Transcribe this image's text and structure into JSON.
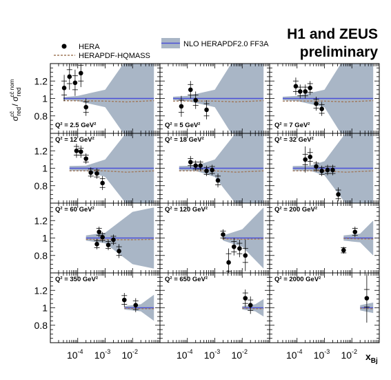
{
  "header": {
    "title_line1": "H1 and ZEUS",
    "title_line2": "preliminary"
  },
  "legend": {
    "data": "HERA",
    "model_a": "HERAPDF-HQMASS",
    "model_b": "NLO HERAPDF2.0 FF3A"
  },
  "colors": {
    "band": "#a9b6c6",
    "nlo_line": "#4a4fd8",
    "hqmass_line": "#a0785a",
    "points": "#000000"
  },
  "chart_data": {
    "type": "scatter",
    "xlabel_base": "x",
    "xlabel_sub": "Bj",
    "ylabel": "σ_red^{cc̄} / σ_red^{cc̄ nom}",
    "x_scale": "log",
    "xlim": [
      1e-05,
      0.1
    ],
    "ylim": [
      0.6,
      1.4
    ],
    "y_ticks": [
      "0.8",
      "1",
      "1.2"
    ],
    "x_ticks": [
      {
        "value": 0.0001,
        "base": "10",
        "exp": "-4"
      },
      {
        "value": 0.001,
        "base": "10",
        "exp": "-3"
      },
      {
        "value": 0.01,
        "base": "10",
        "exp": "-2"
      }
    ],
    "legend_placement": "top",
    "panels": [
      {
        "q2": "Q² = 2.5 GeV²",
        "band": [
          [
            3e-05,
            0.015
          ],
          [
            0.0001,
            0.03
          ],
          [
            0.001,
            0.1
          ],
          [
            0.01,
            0.55
          ],
          [
            0.06,
            0.6
          ]
        ],
        "hqmass": [
          [
            3e-05,
            0.975
          ],
          [
            0.001,
            0.97
          ],
          [
            0.006,
            0.96
          ],
          [
            0.06,
            0.975
          ]
        ],
        "points": [
          [
            3.2e-05,
            1.12,
            0.08,
            0.15
          ],
          [
            5e-05,
            1.25,
            0.08,
            0.15
          ],
          [
            8e-05,
            1.18,
            0.08,
            0.15
          ],
          [
            0.00013,
            1.29,
            0.09,
            0.16
          ],
          [
            0.0002,
            0.9,
            0.06,
            0.1
          ]
        ]
      },
      {
        "q2": "Q² = 5 GeV²",
        "band": [
          [
            3e-05,
            0.02
          ],
          [
            0.0001,
            0.03
          ],
          [
            0.001,
            0.1
          ],
          [
            0.01,
            0.6
          ],
          [
            0.06,
            0.6
          ]
        ],
        "hqmass": [
          [
            3e-05,
            0.97
          ],
          [
            0.001,
            0.97
          ],
          [
            0.006,
            0.96
          ],
          [
            0.06,
            0.975
          ]
        ],
        "points": [
          [
            6e-05,
            0.91,
            0.07,
            0.12
          ],
          [
            0.00013,
            1.1,
            0.06,
            0.1
          ],
          [
            0.0002,
            0.98,
            0.06,
            0.1
          ],
          [
            0.0005,
            0.87,
            0.07,
            0.11
          ]
        ]
      },
      {
        "q2": "Q² = 7 GeV²",
        "band": [
          [
            3e-05,
            0.02
          ],
          [
            0.0001,
            0.03
          ],
          [
            0.001,
            0.1
          ],
          [
            0.01,
            0.6
          ],
          [
            0.06,
            0.6
          ]
        ],
        "hqmass": [
          [
            3e-05,
            0.97
          ],
          [
            0.001,
            0.97
          ],
          [
            0.006,
            0.96
          ],
          [
            0.06,
            0.975
          ]
        ],
        "points": [
          [
            9e-05,
            1.14,
            0.06,
            0.1
          ],
          [
            0.00013,
            1.08,
            0.05,
            0.08
          ],
          [
            0.0002,
            1.08,
            0.05,
            0.08
          ],
          [
            0.0003,
            1.12,
            0.05,
            0.08
          ],
          [
            0.0005,
            0.94,
            0.05,
            0.08
          ],
          [
            0.0008,
            0.88,
            0.05,
            0.08
          ]
        ]
      },
      {
        "q2": "Q² = 12 GeV²",
        "band": [
          [
            5e-05,
            0.025
          ],
          [
            0.0002,
            0.03
          ],
          [
            0.001,
            0.1
          ],
          [
            0.01,
            0.5
          ],
          [
            0.06,
            0.6
          ]
        ],
        "hqmass": [
          [
            5e-05,
            0.97
          ],
          [
            0.001,
            0.97
          ],
          [
            0.006,
            0.955
          ],
          [
            0.06,
            0.97
          ]
        ],
        "points": [
          [
            9e-05,
            1.2,
            0.05,
            0.08
          ],
          [
            0.00013,
            1.19,
            0.04,
            0.07
          ],
          [
            0.0002,
            1.11,
            0.04,
            0.06
          ],
          [
            0.0003,
            0.95,
            0.04,
            0.06
          ],
          [
            0.0005,
            0.94,
            0.04,
            0.06
          ],
          [
            0.0008,
            0.83,
            0.05,
            0.08
          ]
        ]
      },
      {
        "q2": "Q² = 18 GeV²",
        "band": [
          [
            5e-05,
            0.025
          ],
          [
            0.0002,
            0.03
          ],
          [
            0.001,
            0.1
          ],
          [
            0.01,
            0.5
          ],
          [
            0.06,
            0.6
          ]
        ],
        "hqmass": [
          [
            5e-05,
            0.97
          ],
          [
            0.001,
            0.97
          ],
          [
            0.006,
            0.955
          ],
          [
            0.06,
            0.97
          ]
        ],
        "points": [
          [
            0.00013,
            1.07,
            0.04,
            0.07
          ],
          [
            0.0002,
            1.03,
            0.04,
            0.06
          ],
          [
            0.0003,
            1.03,
            0.04,
            0.06
          ],
          [
            0.0005,
            0.97,
            0.04,
            0.06
          ],
          [
            0.0008,
            0.98,
            0.04,
            0.06
          ],
          [
            0.0013,
            0.86,
            0.05,
            0.08
          ]
        ]
      },
      {
        "q2": "Q² = 32 GeV²",
        "band": [
          [
            7e-05,
            0.025
          ],
          [
            0.0003,
            0.03
          ],
          [
            0.001,
            0.08
          ],
          [
            0.01,
            0.5
          ],
          [
            0.06,
            0.6
          ]
        ],
        "hqmass": [
          [
            7e-05,
            0.97
          ],
          [
            0.001,
            0.97
          ],
          [
            0.006,
            0.955
          ],
          [
            0.06,
            0.97
          ]
        ],
        "points": [
          [
            0.0002,
            1.1,
            0.06,
            0.15
          ],
          [
            0.0003,
            1.13,
            0.05,
            0.1
          ],
          [
            0.0005,
            1.02,
            0.04,
            0.06
          ],
          [
            0.0008,
            0.97,
            0.04,
            0.06
          ],
          [
            0.0013,
            0.98,
            0.04,
            0.06
          ],
          [
            0.002,
            0.98,
            0.04,
            0.06
          ],
          [
            0.0032,
            0.7,
            0.05,
            0.08
          ]
        ]
      },
      {
        "q2": "Q² = 60 GeV²",
        "band": [
          [
            0.0002,
            0.03
          ],
          [
            0.001,
            0.06
          ],
          [
            0.01,
            0.3
          ],
          [
            0.06,
            0.35
          ]
        ],
        "hqmass": [
          [
            0.0002,
            0.985
          ],
          [
            0.002,
            0.98
          ],
          [
            0.01,
            0.98
          ],
          [
            0.06,
            0.985
          ]
        ],
        "points": [
          [
            0.0005,
            0.93,
            0.04,
            0.06
          ],
          [
            0.0006,
            1.07,
            0.04,
            0.06
          ],
          [
            0.0008,
            1.01,
            0.04,
            0.06
          ],
          [
            0.0013,
            0.92,
            0.04,
            0.06
          ],
          [
            0.002,
            0.98,
            0.04,
            0.06
          ],
          [
            0.0032,
            0.85,
            0.05,
            0.08
          ]
        ]
      },
      {
        "q2": "Q² = 120 GeV²",
        "band": [
          [
            0.002,
            0.03
          ],
          [
            0.01,
            0.1
          ],
          [
            0.06,
            0.35
          ]
        ],
        "hqmass": [
          [
            0.002,
            0.99
          ],
          [
            0.01,
            0.985
          ],
          [
            0.06,
            0.99
          ]
        ],
        "points": [
          [
            0.002,
            1.04,
            0.04,
            0.06
          ],
          [
            0.0032,
            0.72,
            0.1,
            0.16
          ],
          [
            0.005,
            0.9,
            0.06,
            0.1
          ],
          [
            0.008,
            0.88,
            0.06,
            0.1
          ],
          [
            0.013,
            0.8,
            0.08,
            0.18
          ]
        ]
      },
      {
        "q2": "Q² = 200 GeV²",
        "band": [
          [
            0.005,
            0.03
          ],
          [
            0.02,
            0.05
          ],
          [
            0.06,
            0.2
          ]
        ],
        "hqmass": [
          [
            0.005,
            0.995
          ],
          [
            0.02,
            0.99
          ],
          [
            0.06,
            0.99
          ]
        ],
        "points": [
          [
            0.005,
            0.86,
            0.03,
            0.04
          ],
          [
            0.013,
            1.07,
            0.04,
            0.06
          ]
        ]
      },
      {
        "q2": "Q² = 350 GeV²",
        "band": [
          [
            0.005,
            0.02
          ],
          [
            0.02,
            0.04
          ],
          [
            0.06,
            0.15
          ]
        ],
        "hqmass": [
          [
            0.005,
            0.995
          ],
          [
            0.02,
            0.99
          ],
          [
            0.06,
            0.99
          ]
        ],
        "points": [
          [
            0.005,
            1.09,
            0.05,
            0.08
          ],
          [
            0.013,
            1.03,
            0.05,
            0.08
          ]
        ]
      },
      {
        "q2": "Q² = 650 GeV²",
        "band": [
          [
            0.01,
            0.02
          ],
          [
            0.03,
            0.04
          ],
          [
            0.06,
            0.1
          ]
        ],
        "hqmass": [
          [
            0.01,
            0.995
          ],
          [
            0.03,
            0.99
          ],
          [
            0.06,
            0.99
          ]
        ],
        "points": [
          [
            0.013,
            1.11,
            0.06,
            0.1
          ],
          [
            0.02,
            1.03,
            0.06,
            0.1
          ]
        ]
      },
      {
        "q2": "Q² = 2000 GeV²",
        "band": [
          [
            0.02,
            0.03
          ],
          [
            0.06,
            0.06
          ]
        ],
        "hqmass": [
          [
            0.02,
            0.995
          ],
          [
            0.06,
            0.99
          ]
        ],
        "points": [
          [
            0.035,
            1.11,
            0.1,
            0.28
          ]
        ]
      }
    ]
  }
}
